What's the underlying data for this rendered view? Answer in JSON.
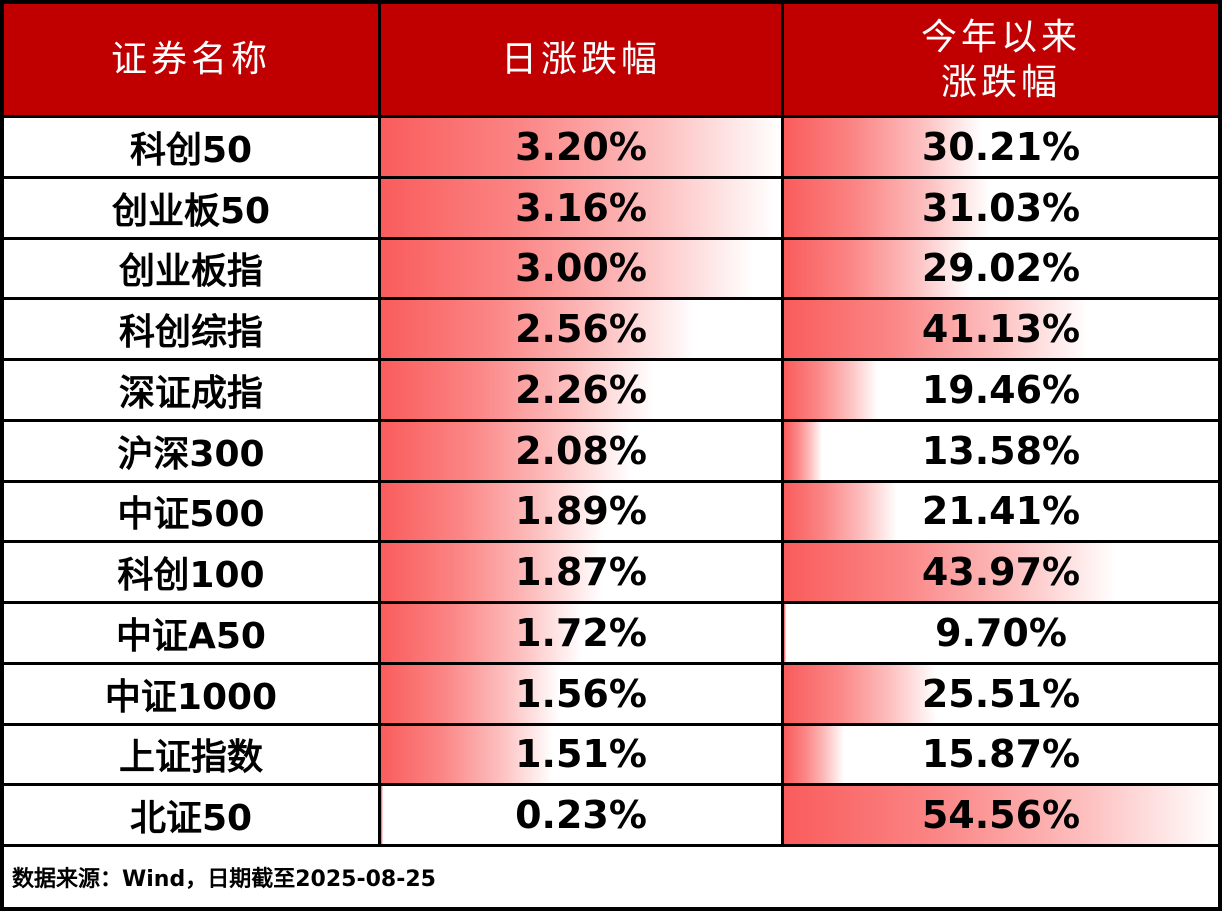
{
  "chart_data": {
    "type": "table",
    "columns": [
      "证券名称",
      "日涨跌幅",
      "今年以来\n涨跌幅"
    ],
    "rows": [
      {
        "name": "科创50",
        "daily": "3.20%",
        "ytd": "30.21%"
      },
      {
        "name": "创业板50",
        "daily": "3.16%",
        "ytd": "31.03%"
      },
      {
        "name": "创业板指",
        "daily": "3.00%",
        "ytd": "29.02%"
      },
      {
        "name": "科创综指",
        "daily": "2.56%",
        "ytd": "41.13%"
      },
      {
        "name": "深证成指",
        "daily": "2.26%",
        "ytd": "19.46%"
      },
      {
        "name": "沪深300",
        "daily": "2.08%",
        "ytd": "13.58%"
      },
      {
        "name": "中证500",
        "daily": "1.89%",
        "ytd": "21.41%"
      },
      {
        "name": "科创100",
        "daily": "1.87%",
        "ytd": "43.97%"
      },
      {
        "name": "中证A50",
        "daily": "1.72%",
        "ytd": "9.70%"
      },
      {
        "name": "中证1000",
        "daily": "1.56%",
        "ytd": "25.51%"
      },
      {
        "name": "上证指数",
        "daily": "1.51%",
        "ytd": "15.87%"
      },
      {
        "name": "北证50",
        "daily": "0.23%",
        "ytd": "54.56%"
      }
    ],
    "databar_scaling": "per-column auto: min value -> 0 width, max value -> full width",
    "legend_position": "none",
    "grid": "on"
  },
  "footer": {
    "source_note": "数据来源：Wind，日期截至2025-08-25"
  },
  "colors": {
    "header_bg": "#c00000",
    "header_text": "#ffffff",
    "bar_gradient_start": "#fa5c5c",
    "bar_gradient_end": "#ffffff",
    "grid_border": "#000000",
    "body_text": "#000000"
  }
}
